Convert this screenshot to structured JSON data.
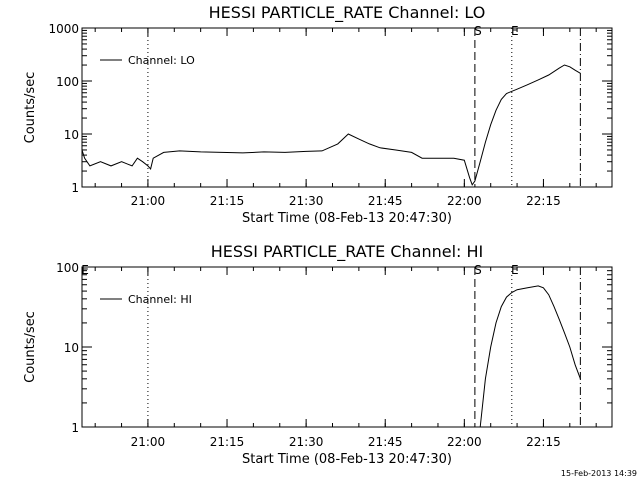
{
  "chart_data": [
    {
      "type": "line",
      "title": "HESSI PARTICLE_RATE Channel: LO",
      "xlabel": "Start Time (08-Feb-13 20:47:30)",
      "ylabel": "Counts/sec",
      "y_scale": "log",
      "xlim": [
        "20:47:30",
        "22:28:00"
      ],
      "ylim": [
        1,
        1000
      ],
      "x_tick_labels": [
        "21:00",
        "21:15",
        "21:30",
        "21:45",
        "22:00",
        "22:15"
      ],
      "y_tick_labels": [
        "1",
        "10",
        "100",
        "1000"
      ],
      "legend": {
        "entries": [
          "Channel: LO"
        ],
        "position": "top-left"
      },
      "markers": [
        {
          "label": "",
          "time": "21:00",
          "style": "dotted"
        },
        {
          "label": "S",
          "time": "22:02",
          "style": "dashed"
        },
        {
          "label": "E",
          "time": "22:09",
          "style": "dotted"
        },
        {
          "label": "",
          "time": "22:22",
          "style": "dash-dot"
        }
      ],
      "series": [
        {
          "name": "Channel: LO",
          "points": [
            [
              "20:47:30",
              5
            ],
            [
              "20:48:00",
              3.5
            ],
            [
              "20:49:00",
              2.5
            ],
            [
              "20:51:00",
              3
            ],
            [
              "20:53:00",
              2.5
            ],
            [
              "20:55:00",
              3
            ],
            [
              "20:57:00",
              2.5
            ],
            [
              "20:58:00",
              3.5
            ],
            [
              "20:59:00",
              3
            ],
            [
              "21:00:00",
              2.5
            ],
            [
              "21:00:30",
              2.2
            ],
            [
              "21:01:00",
              3.5
            ],
            [
              "21:03:00",
              4.5
            ],
            [
              "21:06:00",
              4.8
            ],
            [
              "21:10:00",
              4.6
            ],
            [
              "21:14:00",
              4.5
            ],
            [
              "21:18:00",
              4.4
            ],
            [
              "21:22:00",
              4.6
            ],
            [
              "21:26:00",
              4.5
            ],
            [
              "21:30:00",
              4.7
            ],
            [
              "21:33:00",
              4.8
            ],
            [
              "21:36:00",
              6.5
            ],
            [
              "21:38:00",
              10
            ],
            [
              "21:40:00",
              8
            ],
            [
              "21:42:00",
              6.5
            ],
            [
              "21:44:00",
              5.5
            ],
            [
              "21:47:00",
              5
            ],
            [
              "21:50:00",
              4.5
            ],
            [
              "21:52:00",
              3.5
            ],
            [
              "21:55:00",
              3.5
            ],
            [
              "21:58:00",
              3.5
            ],
            [
              "22:00:00",
              3.2
            ],
            [
              "22:01:00",
              1.5
            ],
            [
              "22:01:30",
              1.1
            ],
            [
              "22:02:00",
              1.3
            ],
            [
              "22:03:00",
              3
            ],
            [
              "22:04:00",
              7
            ],
            [
              "22:05:00",
              15
            ],
            [
              "22:06:00",
              28
            ],
            [
              "22:07:00",
              45
            ],
            [
              "22:08:00",
              58
            ],
            [
              "22:10:00",
              70
            ],
            [
              "22:12:00",
              85
            ],
            [
              "22:14:00",
              105
            ],
            [
              "22:16:00",
              130
            ],
            [
              "22:18:00",
              175
            ],
            [
              "22:19:00",
              200
            ],
            [
              "22:20:00",
              185
            ],
            [
              "22:21:00",
              160
            ],
            [
              "22:22:00",
              140
            ]
          ]
        }
      ]
    },
    {
      "type": "line",
      "title": "HESSI PARTICLE_RATE Channel: HI",
      "xlabel": "Start Time (08-Feb-13 20:47:30)",
      "ylabel": "Counts/sec",
      "y_scale": "log",
      "xlim": [
        "20:47:30",
        "22:28:00"
      ],
      "ylim": [
        1,
        100
      ],
      "x_tick_labels": [
        "21:00",
        "21:15",
        "21:30",
        "21:45",
        "22:00",
        "22:15"
      ],
      "y_tick_labels": [
        "1",
        "10",
        "100"
      ],
      "legend": {
        "entries": [
          "Channel: HI"
        ],
        "position": "top-left"
      },
      "markers": [
        {
          "label": "E",
          "time": "20:47:30",
          "style": "none"
        },
        {
          "label": "",
          "time": "21:00",
          "style": "dotted"
        },
        {
          "label": "S",
          "time": "22:02",
          "style": "dashed"
        },
        {
          "label": "E",
          "time": "22:09",
          "style": "dotted"
        },
        {
          "label": "",
          "time": "22:22",
          "style": "dash-dot"
        }
      ],
      "series": [
        {
          "name": "Channel: HI",
          "points": [
            [
              "22:03:00",
              1.0
            ],
            [
              "22:03:30",
              2
            ],
            [
              "22:04:00",
              4
            ],
            [
              "22:05:00",
              10
            ],
            [
              "22:06:00",
              20
            ],
            [
              "22:07:00",
              32
            ],
            [
              "22:08:00",
              42
            ],
            [
              "22:09:00",
              48
            ],
            [
              "22:10:00",
              52
            ],
            [
              "22:12:00",
              55
            ],
            [
              "22:14:00",
              58
            ],
            [
              "22:15:00",
              55
            ],
            [
              "22:16:00",
              45
            ],
            [
              "22:17:00",
              32
            ],
            [
              "22:18:00",
              22
            ],
            [
              "22:19:00",
              15
            ],
            [
              "22:20:00",
              10
            ],
            [
              "22:21:00",
              6
            ],
            [
              "22:22:00",
              4
            ]
          ]
        }
      ]
    }
  ],
  "footer": {
    "timestamp": "15-Feb-2013 14:39"
  }
}
